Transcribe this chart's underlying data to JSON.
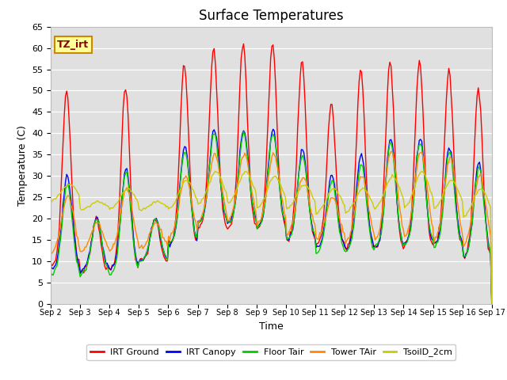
{
  "title": "Surface Temperatures",
  "xlabel": "Time",
  "ylabel": "Temperature (C)",
  "ylim": [
    0,
    65
  ],
  "series": [
    "IRT Ground",
    "IRT Canopy",
    "Floor Tair",
    "Tower TAir",
    "TsoilD_2cm"
  ],
  "colors": [
    "#ff0000",
    "#0000ff",
    "#00cc00",
    "#ff8800",
    "#cccc00"
  ],
  "x_tick_labels": [
    "Sep 2",
    "Sep 3",
    "Sep 4",
    "Sep 5",
    "Sep 6",
    "Sep 7",
    "Sep 8",
    "Sep 9",
    "Sep 10",
    "Sep 11",
    "Sep 12",
    "Sep 13",
    "Sep 14",
    "Sep 15",
    "Sep 16",
    "Sep 17"
  ],
  "annotation_text": "TZ_irt",
  "annotation_bg": "#ffff99",
  "annotation_border": "#cc8800",
  "title_fontsize": 12,
  "axis_fontsize": 9,
  "tick_fontsize": 8,
  "legend_fontsize": 8,
  "n_days": 15,
  "hours_per_day": 24,
  "irt_ground_day_peaks": [
    50,
    20,
    51,
    20,
    56,
    60,
    61,
    61,
    57,
    47,
    55,
    57,
    57,
    55,
    50
  ],
  "irt_ground_day_mins": [
    9,
    8,
    8,
    10,
    14,
    18,
    18,
    18,
    15,
    14,
    13,
    13,
    14,
    14,
    11
  ],
  "canopy_day_peaks": [
    30,
    20,
    32,
    20,
    37,
    41,
    41,
    41,
    36,
    30,
    35,
    39,
    39,
    37,
    33
  ],
  "canopy_day_mins": [
    8,
    8,
    8,
    10,
    14,
    19,
    19,
    18,
    15,
    13,
    13,
    13,
    14,
    14,
    11
  ],
  "floor_day_peaks": [
    28,
    20,
    31,
    20,
    36,
    40,
    40,
    40,
    35,
    29,
    33,
    38,
    38,
    36,
    32
  ],
  "floor_day_mins": [
    7,
    7,
    7,
    10,
    14,
    19,
    19,
    18,
    15,
    12,
    12,
    13,
    14,
    13,
    11
  ],
  "tower_day_peaks": [
    25,
    19,
    27,
    19,
    30,
    35,
    35,
    35,
    30,
    25,
    30,
    36,
    36,
    34,
    30
  ],
  "tower_day_mins": [
    12,
    12,
    12,
    13,
    15,
    19,
    19,
    18,
    16,
    15,
    14,
    14,
    15,
    14,
    13
  ],
  "soil_day_peaks": [
    28,
    24,
    27,
    24,
    29,
    31,
    31,
    30,
    28,
    27,
    27,
    30,
    31,
    29,
    27
  ],
  "soil_day_mins": [
    24,
    22,
    22,
    22,
    22,
    23,
    23,
    22,
    22,
    21,
    21,
    22,
    22,
    22,
    20
  ]
}
